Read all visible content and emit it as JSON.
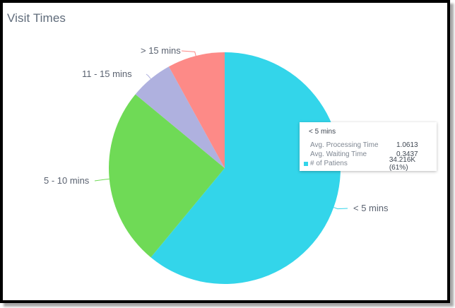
{
  "title": "Visit Times",
  "chart_data": {
    "type": "pie",
    "title": "Visit Times",
    "categories": [
      "< 5 mins",
      "5 - 10 mins",
      "11 - 15 mins",
      "> 15 mins"
    ],
    "values": [
      61,
      25,
      6,
      8
    ],
    "unit": "% of Patients",
    "colors": [
      "#33d5ea",
      "#6fda56",
      "#afb1df",
      "#fd8a87"
    ],
    "start_angle_deg": 0,
    "direction": "clockwise",
    "legend": "none (slice labels with leader lines)"
  },
  "labels": {
    "lt5": "< 5 mins",
    "5to10": "5 - 10 mins",
    "11to15": "11 - 15 mins",
    "gt15": "> 15 mins"
  },
  "tooltip": {
    "title": "< 5 mins",
    "rows": [
      {
        "key": "Avg. Processing Time",
        "value": "1.0613"
      },
      {
        "key": "Avg. Waiting Time",
        "value": "0.3437"
      },
      {
        "key": "# of Patiens",
        "value": "34.216K (61%)",
        "swatch": "#33d5ea"
      }
    ]
  }
}
